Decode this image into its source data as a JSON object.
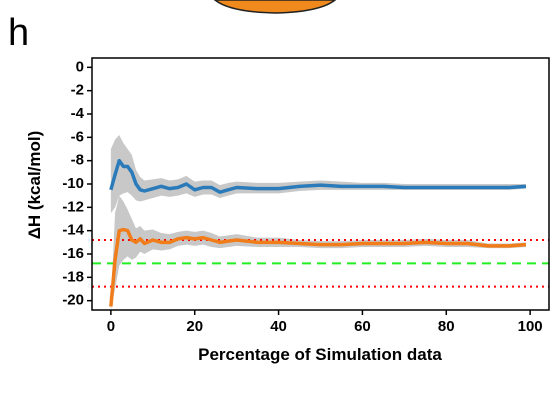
{
  "panel_label": "h",
  "chart_data": {
    "type": "line",
    "xlabel": "Percentage of Simulation data",
    "ylabel": "ΔH (kcal/mol)",
    "xlim": [
      -4.5,
      104.5
    ],
    "ylim": [
      -20.8,
      0.8
    ],
    "xticks": [
      0,
      20,
      40,
      60,
      80,
      100
    ],
    "yticks": [
      0,
      -2,
      -4,
      -6,
      -8,
      -10,
      -12,
      -14,
      -16,
      -18,
      -20
    ],
    "x": [
      0,
      1,
      2,
      3,
      4,
      5,
      6,
      7,
      8,
      10,
      12,
      14,
      16,
      18,
      20,
      22,
      24,
      26,
      28,
      30,
      35,
      40,
      45,
      50,
      55,
      60,
      65,
      70,
      75,
      80,
      85,
      90,
      95,
      99
    ],
    "band_color": "#c8c8c8",
    "series": [
      {
        "color": "#2b7bba",
        "values": [
          -10.5,
          -9.2,
          -8.0,
          -8.5,
          -8.5,
          -9.0,
          -10.0,
          -10.5,
          -10.6,
          -10.4,
          -10.2,
          -10.4,
          -10.3,
          -10.0,
          -10.5,
          -10.3,
          -10.3,
          -10.7,
          -10.5,
          -10.3,
          -10.4,
          -10.4,
          -10.2,
          -10.1,
          -10.2,
          -10.2,
          -10.2,
          -10.3,
          -10.3,
          -10.3,
          -10.3,
          -10.3,
          -10.3,
          -10.2
        ],
        "lower": [
          -12.5,
          -12.0,
          -11.0,
          -10.8,
          -10.7,
          -11.0,
          -11.4,
          -11.5,
          -11.4,
          -11.2,
          -11.0,
          -11.1,
          -11.0,
          -10.8,
          -11.1,
          -10.9,
          -10.9,
          -11.2,
          -11.0,
          -10.8,
          -10.8,
          -10.8,
          -10.6,
          -10.5,
          -10.5,
          -10.5,
          -10.5,
          -10.5,
          -10.5,
          -10.5,
          -10.5,
          -10.5,
          -10.5,
          -10.4
        ],
        "upper": [
          -7.0,
          -6.2,
          -5.8,
          -6.5,
          -7.0,
          -7.5,
          -8.8,
          -9.4,
          -9.7,
          -9.6,
          -9.5,
          -9.7,
          -9.6,
          -9.3,
          -9.8,
          -9.7,
          -9.7,
          -10.1,
          -9.9,
          -9.8,
          -9.9,
          -9.9,
          -9.8,
          -9.7,
          -9.8,
          -9.9,
          -9.9,
          -10.0,
          -10.0,
          -10.0,
          -10.0,
          -10.0,
          -10.0,
          -10.0
        ]
      },
      {
        "color": "#f07c1a",
        "values": [
          -20.5,
          -16.5,
          -14.0,
          -13.9,
          -14.0,
          -14.8,
          -15.0,
          -14.7,
          -15.1,
          -14.8,
          -15.0,
          -15.0,
          -14.7,
          -14.6,
          -14.7,
          -14.6,
          -14.8,
          -15.0,
          -14.9,
          -14.8,
          -15.0,
          -15.0,
          -15.1,
          -15.2,
          -15.2,
          -15.1,
          -15.1,
          -15.1,
          -15.0,
          -15.1,
          -15.1,
          -15.3,
          -15.3,
          -15.2
        ],
        "lower": [
          -20.8,
          -19.0,
          -17.0,
          -16.5,
          -16.2,
          -16.5,
          -16.3,
          -15.8,
          -16.0,
          -15.6,
          -15.7,
          -15.6,
          -15.3,
          -15.2,
          -15.3,
          -15.2,
          -15.4,
          -15.5,
          -15.4,
          -15.3,
          -15.4,
          -15.4,
          -15.4,
          -15.5,
          -15.5,
          -15.4,
          -15.4,
          -15.4,
          -15.3,
          -15.4,
          -15.4,
          -15.5,
          -15.5,
          -15.4
        ],
        "upper": [
          -20.0,
          -12.5,
          -11.0,
          -11.5,
          -12.2,
          -13.0,
          -13.8,
          -13.6,
          -14.0,
          -13.9,
          -14.2,
          -14.3,
          -14.1,
          -14.0,
          -14.1,
          -14.0,
          -14.2,
          -14.5,
          -14.4,
          -14.3,
          -14.6,
          -14.6,
          -14.8,
          -14.9,
          -14.9,
          -14.8,
          -14.8,
          -14.8,
          -14.7,
          -14.8,
          -14.8,
          -15.1,
          -15.1,
          -15.0
        ]
      }
    ],
    "hlines": [
      {
        "y": -14.8,
        "color": "#ff0000",
        "style": "dotted"
      },
      {
        "y": -16.8,
        "color": "#22ee22",
        "style": "dashed"
      },
      {
        "y": -18.8,
        "color": "#ff0000",
        "style": "dotted"
      }
    ]
  }
}
